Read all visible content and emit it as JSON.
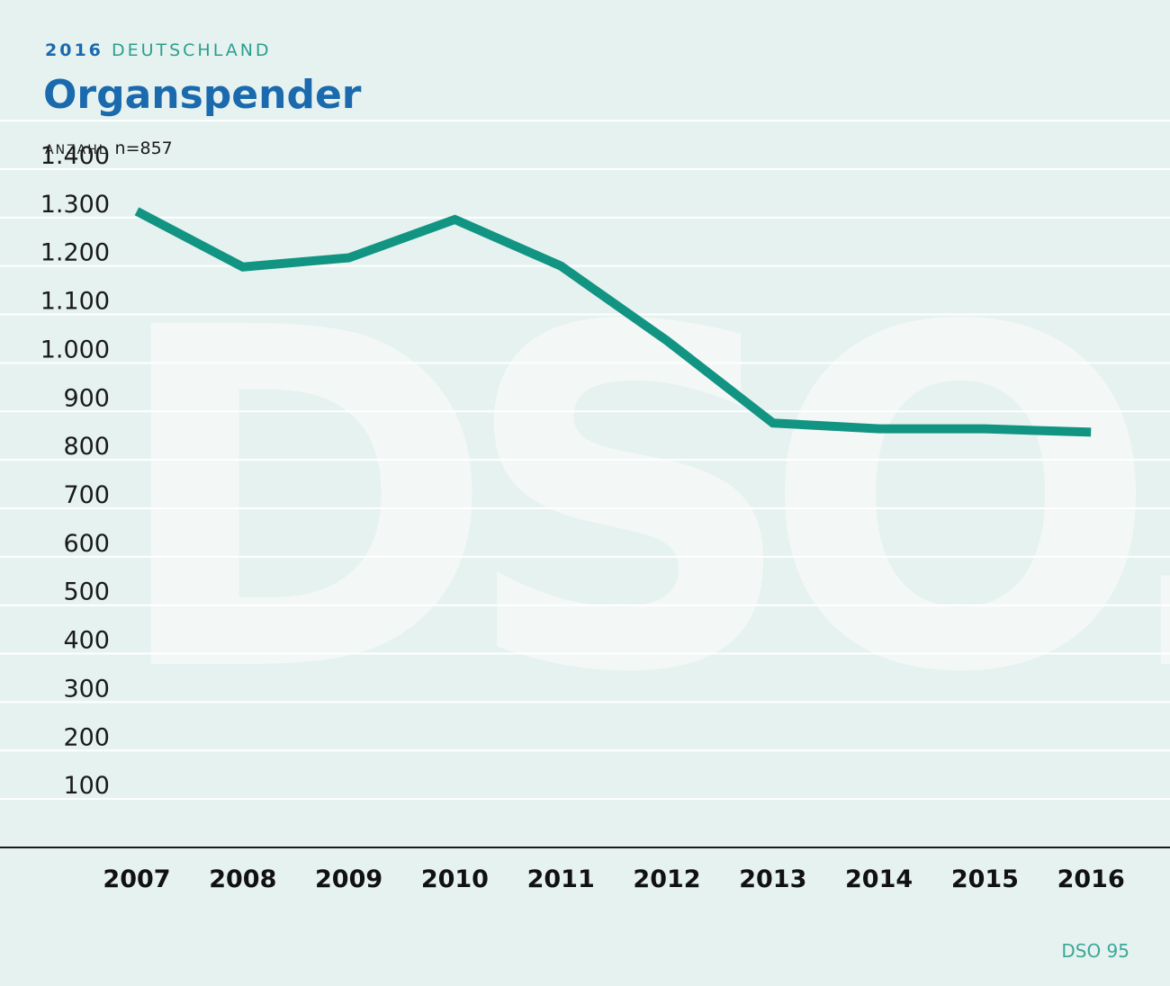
{
  "header": {
    "year": "2016",
    "country": "DEUTSCHLAND",
    "title": "Organspender",
    "unit_label": "ANZAHL",
    "unit_n": "n=857"
  },
  "watermark": {
    "text": "DSO."
  },
  "source": "DSO 95",
  "colors": {
    "background": "#e6f2f0",
    "title": "#1a6aad",
    "accent": "#2a9e8e",
    "line": "#129483",
    "gridline": "#ffffff"
  },
  "chart_data": {
    "type": "line",
    "title": "Organspender",
    "ylabel": "ANZAHL",
    "ylim": [
      0,
      1400
    ],
    "yticks": [
      100,
      200,
      300,
      400,
      500,
      600,
      700,
      800,
      900,
      1000,
      1100,
      1200,
      1300,
      1400
    ],
    "ytick_labels": [
      "100",
      "200",
      "300",
      "400",
      "500",
      "600",
      "700",
      "800",
      "900",
      "1.000",
      "1.100",
      "1.200",
      "1.300",
      "1.400"
    ],
    "categories": [
      "2007",
      "2008",
      "2009",
      "2010",
      "2011",
      "2012",
      "2013",
      "2014",
      "2015",
      "2016"
    ],
    "series": [
      {
        "values": [
          1313,
          1198,
          1217,
          1296,
          1200,
          1046,
          876,
          864,
          864,
          857
        ]
      }
    ],
    "grid": true,
    "legend": "none"
  }
}
